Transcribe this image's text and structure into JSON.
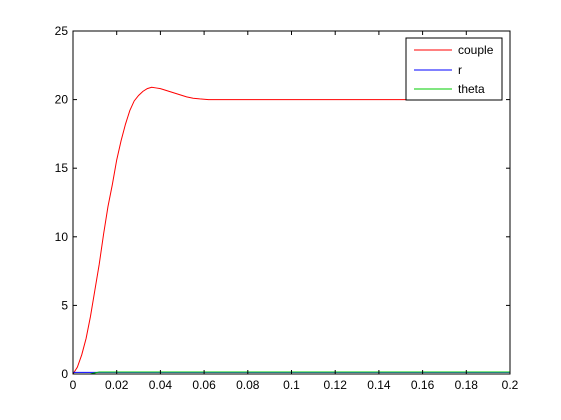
{
  "chart_data": {
    "type": "line",
    "xlim": [
      0,
      0.2
    ],
    "ylim": [
      0,
      25
    ],
    "xticks": [
      "0",
      "0.02",
      "0.04",
      "0.06",
      "0.08",
      "0.1",
      "0.12",
      "0.14",
      "0.16",
      "0.18",
      "0.2"
    ],
    "yticks": [
      "0",
      "5",
      "10",
      "15",
      "20",
      "25"
    ],
    "grid": false,
    "legend_position": "top-right",
    "series": [
      {
        "name": "couple",
        "color": "#ff0000",
        "x": [
          0,
          0.002,
          0.004,
          0.006,
          0.008,
          0.01,
          0.012,
          0.014,
          0.016,
          0.018,
          0.02,
          0.022,
          0.024,
          0.026,
          0.028,
          0.03,
          0.032,
          0.034,
          0.036,
          0.038,
          0.04,
          0.042,
          0.044,
          0.046,
          0.048,
          0.05,
          0.052,
          0.055,
          0.058,
          0.062,
          0.07,
          0.08,
          0.1,
          0.12,
          0.14,
          0.16,
          0.176
        ],
        "y": [
          0,
          0.5,
          1.4,
          2.6,
          4.2,
          6.1,
          8.0,
          10.2,
          12.2,
          13.8,
          15.6,
          17.0,
          18.2,
          19.2,
          19.9,
          20.3,
          20.6,
          20.8,
          20.9,
          20.85,
          20.8,
          20.7,
          20.6,
          20.5,
          20.4,
          20.3,
          20.2,
          20.1,
          20.05,
          20.0,
          20.0,
          20.0,
          20.0,
          20.0,
          20.0,
          20.0,
          20.0
        ]
      },
      {
        "name": "r",
        "color": "#0000ff",
        "x": [
          0,
          0.2
        ],
        "y": [
          0.12,
          0.12
        ]
      },
      {
        "name": "theta",
        "color": "#00cc00",
        "x": [
          0,
          0.008,
          0.012,
          0.2
        ],
        "y": [
          0,
          0.01,
          0.15,
          0.15
        ]
      }
    ]
  }
}
